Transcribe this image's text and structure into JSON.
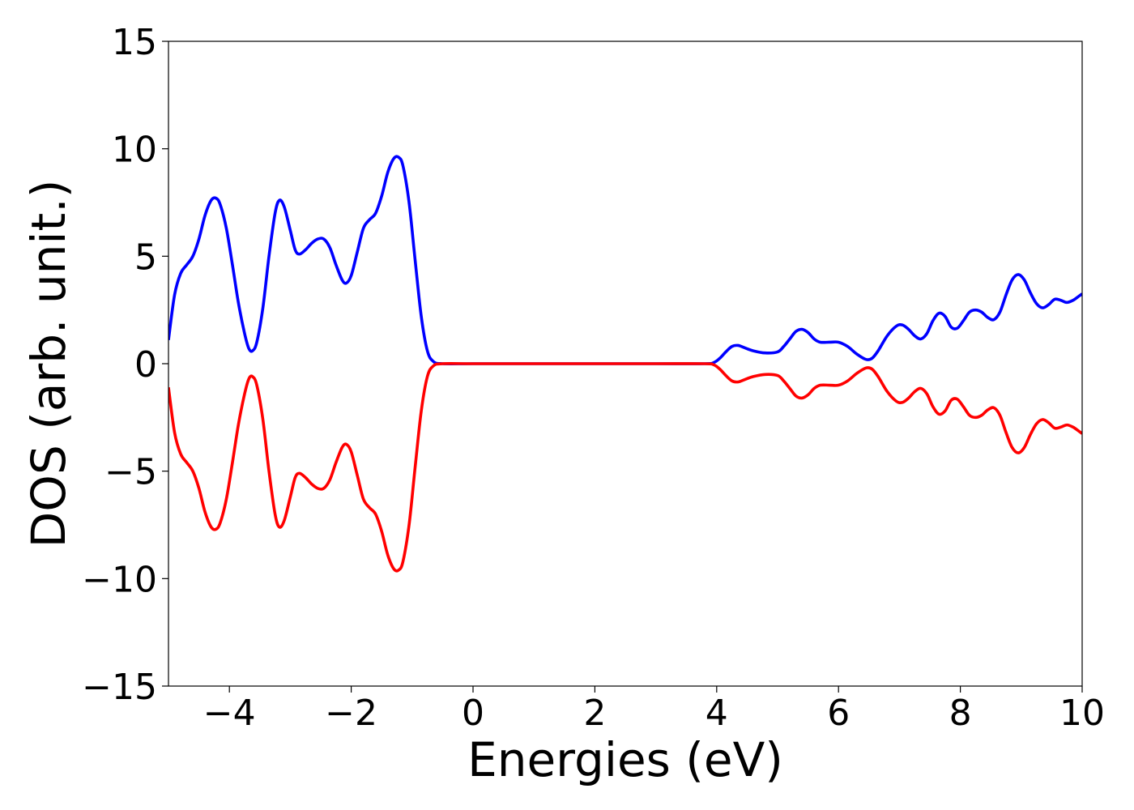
{
  "chart_data": {
    "type": "line",
    "title": "",
    "xlabel": "Energies (eV)",
    "ylabel": "DOS (arb. unit.)",
    "xlim": [
      -5,
      10
    ],
    "ylim": [
      -15,
      15
    ],
    "x_ticks": [
      -4,
      -2,
      0,
      2,
      4,
      6,
      8,
      10
    ],
    "x_tick_labels": [
      "−4",
      "−2",
      "0",
      "2",
      "4",
      "6",
      "8",
      "10"
    ],
    "y_ticks": [
      -15,
      -10,
      -5,
      0,
      5,
      10,
      15
    ],
    "y_tick_labels": [
      "−15",
      "−10",
      "−5",
      "0",
      "5",
      "10",
      "15"
    ],
    "grid": false,
    "legend": "none",
    "series": [
      {
        "color": "#0000ff",
        "points": [
          [
            -5.0,
            1.1
          ],
          [
            -4.9,
            3.2
          ],
          [
            -4.8,
            4.2
          ],
          [
            -4.7,
            4.6
          ],
          [
            -4.6,
            5.0
          ],
          [
            -4.5,
            5.8
          ],
          [
            -4.4,
            6.9
          ],
          [
            -4.3,
            7.6
          ],
          [
            -4.22,
            7.7
          ],
          [
            -4.15,
            7.4
          ],
          [
            -4.05,
            6.3
          ],
          [
            -3.95,
            4.6
          ],
          [
            -3.85,
            2.8
          ],
          [
            -3.75,
            1.4
          ],
          [
            -3.68,
            0.7
          ],
          [
            -3.62,
            0.6
          ],
          [
            -3.55,
            1.0
          ],
          [
            -3.45,
            2.6
          ],
          [
            -3.35,
            5.0
          ],
          [
            -3.25,
            7.0
          ],
          [
            -3.18,
            7.6
          ],
          [
            -3.1,
            7.3
          ],
          [
            -3.0,
            6.2
          ],
          [
            -2.92,
            5.3
          ],
          [
            -2.85,
            5.1
          ],
          [
            -2.75,
            5.3
          ],
          [
            -2.65,
            5.6
          ],
          [
            -2.55,
            5.8
          ],
          [
            -2.45,
            5.8
          ],
          [
            -2.35,
            5.4
          ],
          [
            -2.25,
            4.6
          ],
          [
            -2.15,
            3.9
          ],
          [
            -2.08,
            3.75
          ],
          [
            -2.0,
            4.1
          ],
          [
            -1.9,
            5.2
          ],
          [
            -1.8,
            6.3
          ],
          [
            -1.7,
            6.7
          ],
          [
            -1.6,
            7.0
          ],
          [
            -1.5,
            7.8
          ],
          [
            -1.4,
            8.9
          ],
          [
            -1.3,
            9.55
          ],
          [
            -1.22,
            9.6
          ],
          [
            -1.15,
            9.2
          ],
          [
            -1.05,
            7.5
          ],
          [
            -0.95,
            4.8
          ],
          [
            -0.85,
            2.2
          ],
          [
            -0.75,
            0.6
          ],
          [
            -0.65,
            0.1
          ],
          [
            -0.5,
            0.0
          ],
          [
            0.0,
            0.0
          ],
          [
            1.0,
            0.0
          ],
          [
            2.0,
            0.0
          ],
          [
            3.0,
            0.0
          ],
          [
            3.8,
            0.0
          ],
          [
            3.95,
            0.05
          ],
          [
            4.05,
            0.25
          ],
          [
            4.15,
            0.55
          ],
          [
            4.25,
            0.8
          ],
          [
            4.35,
            0.85
          ],
          [
            4.45,
            0.75
          ],
          [
            4.6,
            0.6
          ],
          [
            4.8,
            0.5
          ],
          [
            5.0,
            0.55
          ],
          [
            5.1,
            0.8
          ],
          [
            5.2,
            1.15
          ],
          [
            5.3,
            1.5
          ],
          [
            5.4,
            1.6
          ],
          [
            5.5,
            1.45
          ],
          [
            5.6,
            1.15
          ],
          [
            5.7,
            1.0
          ],
          [
            5.85,
            1.0
          ],
          [
            6.0,
            1.0
          ],
          [
            6.15,
            0.8
          ],
          [
            6.3,
            0.45
          ],
          [
            6.45,
            0.2
          ],
          [
            6.55,
            0.25
          ],
          [
            6.65,
            0.6
          ],
          [
            6.8,
            1.3
          ],
          [
            6.95,
            1.75
          ],
          [
            7.05,
            1.8
          ],
          [
            7.15,
            1.6
          ],
          [
            7.25,
            1.3
          ],
          [
            7.35,
            1.15
          ],
          [
            7.45,
            1.4
          ],
          [
            7.55,
            2.0
          ],
          [
            7.65,
            2.35
          ],
          [
            7.75,
            2.2
          ],
          [
            7.85,
            1.7
          ],
          [
            7.95,
            1.65
          ],
          [
            8.05,
            2.0
          ],
          [
            8.15,
            2.4
          ],
          [
            8.25,
            2.5
          ],
          [
            8.35,
            2.4
          ],
          [
            8.45,
            2.15
          ],
          [
            8.55,
            2.05
          ],
          [
            8.65,
            2.4
          ],
          [
            8.75,
            3.2
          ],
          [
            8.85,
            3.9
          ],
          [
            8.95,
            4.15
          ],
          [
            9.05,
            3.9
          ],
          [
            9.15,
            3.3
          ],
          [
            9.25,
            2.8
          ],
          [
            9.35,
            2.6
          ],
          [
            9.45,
            2.75
          ],
          [
            9.55,
            3.0
          ],
          [
            9.65,
            2.95
          ],
          [
            9.75,
            2.85
          ],
          [
            9.85,
            2.95
          ],
          [
            9.95,
            3.15
          ],
          [
            10.0,
            3.25
          ]
        ]
      },
      {
        "color": "#ff0000",
        "points": [
          [
            -5.0,
            -1.1
          ],
          [
            -4.9,
            -3.2
          ],
          [
            -4.8,
            -4.2
          ],
          [
            -4.7,
            -4.6
          ],
          [
            -4.6,
            -5.0
          ],
          [
            -4.5,
            -5.8
          ],
          [
            -4.4,
            -6.9
          ],
          [
            -4.3,
            -7.6
          ],
          [
            -4.22,
            -7.7
          ],
          [
            -4.15,
            -7.4
          ],
          [
            -4.05,
            -6.3
          ],
          [
            -3.95,
            -4.6
          ],
          [
            -3.85,
            -2.8
          ],
          [
            -3.75,
            -1.4
          ],
          [
            -3.68,
            -0.7
          ],
          [
            -3.62,
            -0.6
          ],
          [
            -3.55,
            -1.0
          ],
          [
            -3.45,
            -2.6
          ],
          [
            -3.35,
            -5.0
          ],
          [
            -3.25,
            -7.0
          ],
          [
            -3.18,
            -7.6
          ],
          [
            -3.1,
            -7.3
          ],
          [
            -3.0,
            -6.2
          ],
          [
            -2.92,
            -5.3
          ],
          [
            -2.85,
            -5.1
          ],
          [
            -2.75,
            -5.3
          ],
          [
            -2.65,
            -5.6
          ],
          [
            -2.55,
            -5.8
          ],
          [
            -2.45,
            -5.8
          ],
          [
            -2.35,
            -5.4
          ],
          [
            -2.25,
            -4.6
          ],
          [
            -2.15,
            -3.9
          ],
          [
            -2.08,
            -3.75
          ],
          [
            -2.0,
            -4.1
          ],
          [
            -1.9,
            -5.2
          ],
          [
            -1.8,
            -6.3
          ],
          [
            -1.7,
            -6.7
          ],
          [
            -1.6,
            -7.0
          ],
          [
            -1.5,
            -7.8
          ],
          [
            -1.4,
            -8.9
          ],
          [
            -1.3,
            -9.55
          ],
          [
            -1.22,
            -9.6
          ],
          [
            -1.15,
            -9.2
          ],
          [
            -1.05,
            -7.5
          ],
          [
            -0.95,
            -4.8
          ],
          [
            -0.85,
            -2.2
          ],
          [
            -0.75,
            -0.6
          ],
          [
            -0.65,
            -0.1
          ],
          [
            -0.5,
            0.0
          ],
          [
            0.0,
            0.0
          ],
          [
            1.0,
            0.0
          ],
          [
            2.0,
            0.0
          ],
          [
            3.0,
            0.0
          ],
          [
            3.8,
            0.0
          ],
          [
            3.95,
            -0.05
          ],
          [
            4.05,
            -0.25
          ],
          [
            4.15,
            -0.55
          ],
          [
            4.25,
            -0.8
          ],
          [
            4.35,
            -0.85
          ],
          [
            4.45,
            -0.75
          ],
          [
            4.6,
            -0.6
          ],
          [
            4.8,
            -0.5
          ],
          [
            5.0,
            -0.55
          ],
          [
            5.1,
            -0.8
          ],
          [
            5.2,
            -1.15
          ],
          [
            5.3,
            -1.5
          ],
          [
            5.4,
            -1.6
          ],
          [
            5.5,
            -1.45
          ],
          [
            5.6,
            -1.15
          ],
          [
            5.7,
            -1.0
          ],
          [
            5.85,
            -1.0
          ],
          [
            6.0,
            -1.0
          ],
          [
            6.15,
            -0.8
          ],
          [
            6.3,
            -0.45
          ],
          [
            6.45,
            -0.2
          ],
          [
            6.55,
            -0.25
          ],
          [
            6.65,
            -0.6
          ],
          [
            6.8,
            -1.3
          ],
          [
            6.95,
            -1.75
          ],
          [
            7.05,
            -1.8
          ],
          [
            7.15,
            -1.6
          ],
          [
            7.25,
            -1.3
          ],
          [
            7.35,
            -1.15
          ],
          [
            7.45,
            -1.4
          ],
          [
            7.55,
            -2.0
          ],
          [
            7.65,
            -2.35
          ],
          [
            7.75,
            -2.2
          ],
          [
            7.85,
            -1.7
          ],
          [
            7.95,
            -1.65
          ],
          [
            8.05,
            -2.0
          ],
          [
            8.15,
            -2.4
          ],
          [
            8.25,
            -2.5
          ],
          [
            8.35,
            -2.4
          ],
          [
            8.45,
            -2.15
          ],
          [
            8.55,
            -2.05
          ],
          [
            8.65,
            -2.4
          ],
          [
            8.75,
            -3.2
          ],
          [
            8.85,
            -3.9
          ],
          [
            8.95,
            -4.15
          ],
          [
            9.05,
            -3.9
          ],
          [
            9.15,
            -3.3
          ],
          [
            9.25,
            -2.8
          ],
          [
            9.35,
            -2.6
          ],
          [
            9.45,
            -2.75
          ],
          [
            9.55,
            -3.0
          ],
          [
            9.65,
            -2.95
          ],
          [
            9.75,
            -2.85
          ],
          [
            9.85,
            -2.95
          ],
          [
            9.95,
            -3.15
          ],
          [
            10.0,
            -3.25
          ]
        ]
      }
    ]
  }
}
